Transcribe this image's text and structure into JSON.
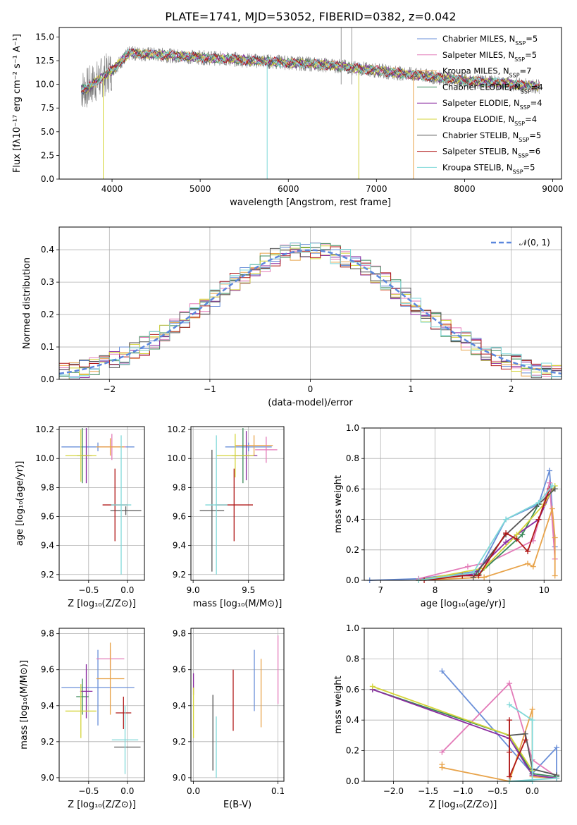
{
  "figure": {
    "title": "PLATE=1741, MJD=53052, FIBERID=0382, z=0.042"
  },
  "chart_data": [
    {
      "id": "spectrum",
      "type": "line",
      "xlabel": "wavelength [Angstrom, rest frame]",
      "ylabel": "Flux [fλ10⁻¹⁷ erg cm⁻² s⁻¹ A⁻¹]",
      "xlim": [
        3400,
        9100
      ],
      "ylim": [
        0,
        16
      ],
      "xticks": [
        "4000",
        "5000",
        "6000",
        "7000",
        "8000",
        "9000"
      ],
      "yticks": [
        "0.0",
        "2.5",
        "5.0",
        "7.5",
        "10.0",
        "12.5",
        "15.0"
      ],
      "grid": false,
      "legend_position": "upper right",
      "data_wavelength_range": [
        3650,
        8850
      ],
      "legend": [
        {
          "name": "Chabrier MILES, N",
          "sub": "SSP",
          "tail": "=5",
          "color": "#6a8fd8"
        },
        {
          "name": "Salpeter MILES, N",
          "sub": "SSP",
          "tail": "=5",
          "color": "#e37ab8"
        },
        {
          "name": "Kroupa MILES, N",
          "sub": "SSP",
          "tail": "=7",
          "color": "#e8a34a"
        },
        {
          "name": "Chabrier ELODIE, N",
          "sub": "SSP",
          "tail": "=4",
          "color": "#3a8a5a"
        },
        {
          "name": "Salpeter ELODIE, N",
          "sub": "SSP",
          "tail": "=4",
          "color": "#8a2ba0"
        },
        {
          "name": "Kroupa ELODIE, N",
          "sub": "SSP",
          "tail": "=4",
          "color": "#d4d438"
        },
        {
          "name": "Chabrier STELIB, N",
          "sub": "SSP",
          "tail": "=5",
          "color": "#555555"
        },
        {
          "name": "Salpeter STELIB, N",
          "sub": "SSP",
          "tail": "=6",
          "color": "#b01818"
        },
        {
          "name": "Kroupa STELIB, N",
          "sub": "SSP",
          "tail": "=5",
          "color": "#7fd8d8"
        }
      ]
    },
    {
      "id": "residual-histogram",
      "type": "histogram",
      "xlabel": "(data-model)/error",
      "ylabel": "Normed distribution",
      "xlim": [
        -2.5,
        2.5
      ],
      "ylim": [
        0,
        0.47
      ],
      "xticks": [
        "−2",
        "−1",
        "0",
        "1",
        "2"
      ],
      "yticks": [
        "0.0",
        "0.1",
        "0.2",
        "0.3",
        "0.4"
      ],
      "grid": true,
      "legend_label": "𝒩(0, 1)",
      "reference_curve": {
        "name": "N(0,1)",
        "mean": 0,
        "sigma": 1,
        "color": "#5b87dd"
      },
      "bin_width": 0.1,
      "bin_start": -2.5
    },
    {
      "id": "age-vs-z",
      "type": "errorbar",
      "xlabel": "Z [log₁₀(Z/Z⊙)]",
      "ylabel": "age  [log₁₀(age/yr)]",
      "xlim": [
        -0.88,
        0.22
      ],
      "ylim": [
        9.16,
        10.22
      ],
      "xticks": [
        "−0.5",
        "0.0"
      ],
      "yticks": [
        "9.2",
        "9.4",
        "9.6",
        "9.8",
        "10.0",
        "10.2"
      ],
      "grid": true,
      "points": [
        {
          "x": -0.38,
          "xerr": 0.47,
          "y": 10.08,
          "yerr": 0.03,
          "color": "#6a8fd8"
        },
        {
          "x": -0.2,
          "xerr": 0.18,
          "y": 10.08,
          "yerr": 0.09,
          "color": "#e37ab8"
        },
        {
          "x": -0.22,
          "xerr": 0.18,
          "y": 10.08,
          "yerr": 0.06,
          "color": "#e8a34a"
        },
        {
          "x": -0.58,
          "xerr": 0.07,
          "y": 10.02,
          "yerr": 0.19,
          "color": "#3a8a5a"
        },
        {
          "x": -0.53,
          "xerr": 0.07,
          "y": 10.02,
          "yerr": 0.19,
          "color": "#8a2ba0"
        },
        {
          "x": -0.6,
          "xerr": 0.2,
          "y": 10.02,
          "yerr": 0.18,
          "color": "#d4d438"
        },
        {
          "x": -0.02,
          "xerr": 0.2,
          "y": 9.64,
          "yerr": 0.03,
          "color": "#555555"
        },
        {
          "x": -0.16,
          "xerr": 0.16,
          "y": 9.68,
          "yerr": 0.25,
          "color": "#b01818"
        },
        {
          "x": -0.08,
          "xerr": 0.13,
          "y": 9.68,
          "yerr": 0.48,
          "color": "#7fd8d8"
        }
      ]
    },
    {
      "id": "age-vs-mass",
      "type": "errorbar",
      "xlabel": "mass [log₁₀(M/M⊙)]",
      "ylabel": "",
      "xlim": [
        8.98,
        9.82
      ],
      "ylim": [
        9.16,
        10.22
      ],
      "xticks": [
        "9.0",
        "9.5"
      ],
      "yticks": [
        "9.2",
        "9.4",
        "9.6",
        "9.8",
        "10.0",
        "10.2"
      ],
      "grid": true,
      "points": [
        {
          "x": 9.5,
          "xerr": 0.21,
          "y": 10.08,
          "yerr": 0.03,
          "color": "#6a8fd8"
        },
        {
          "x": 9.66,
          "xerr": 0.1,
          "y": 10.06,
          "yerr": 0.09,
          "color": "#e37ab8"
        },
        {
          "x": 9.55,
          "xerr": 0.17,
          "y": 10.09,
          "yerr": 0.07,
          "color": "#e8a34a"
        },
        {
          "x": 9.45,
          "xerr": 0.1,
          "y": 10.02,
          "yerr": 0.19,
          "color": "#3a8a5a"
        },
        {
          "x": 9.48,
          "xerr": 0.1,
          "y": 10.02,
          "yerr": 0.17,
          "color": "#8a2ba0"
        },
        {
          "x": 9.38,
          "xerr": 0.17,
          "y": 10.02,
          "yerr": 0.15,
          "color": "#d4d438"
        },
        {
          "x": 9.17,
          "xerr": 0.11,
          "y": 9.64,
          "yerr": 0.42,
          "color": "#555555"
        },
        {
          "x": 9.37,
          "xerr": 0.17,
          "y": 9.68,
          "yerr": 0.25,
          "color": "#b01818"
        },
        {
          "x": 9.21,
          "xerr": 0.1,
          "y": 9.68,
          "yerr": 0.48,
          "color": "#7fd8d8"
        }
      ]
    },
    {
      "id": "mass-weight-vs-age",
      "type": "line",
      "xlabel": "age  [log₁₀(age/yr)]",
      "ylabel": "mass weight",
      "xlim": [
        6.7,
        10.32
      ],
      "ylim": [
        0,
        1
      ],
      "xticks": [
        "7",
        "8",
        "9",
        "10"
      ],
      "yticks": [
        "0.0",
        "0.2",
        "0.4",
        "0.6",
        "0.8",
        "1.0"
      ],
      "grid": true,
      "series": [
        {
          "color": "#6a8fd8",
          "points": [
            [
              6.8,
              0.0
            ],
            [
              7.7,
              0.01
            ],
            [
              8.8,
              0.06
            ],
            [
              9.3,
              0.4
            ],
            [
              9.9,
              0.5
            ],
            [
              10.1,
              0.72
            ],
            [
              10.2,
              0.22
            ]
          ]
        },
        {
          "color": "#e37ab8",
          "points": [
            [
              7.7,
              0.01
            ],
            [
              8.6,
              0.09
            ],
            [
              9.0,
              0.12
            ],
            [
              9.8,
              0.26
            ],
            [
              10.1,
              0.64
            ],
            [
              10.2,
              0.14
            ]
          ]
        },
        {
          "color": "#e8a34a",
          "points": [
            [
              7.7,
              0.0
            ],
            [
              8.9,
              0.02
            ],
            [
              9.7,
              0.11
            ],
            [
              9.8,
              0.09
            ],
            [
              10.15,
              0.47
            ],
            [
              10.2,
              0.28
            ],
            [
              10.2,
              0.03
            ]
          ]
        },
        {
          "color": "#3a8a5a",
          "points": [
            [
              7.7,
              0.0
            ],
            [
              8.5,
              0.03
            ],
            [
              8.8,
              0.04
            ],
            [
              9.6,
              0.3
            ],
            [
              9.9,
              0.5
            ],
            [
              10.2,
              0.6
            ]
          ]
        },
        {
          "color": "#8a2ba0",
          "points": [
            [
              7.7,
              0.0
            ],
            [
              8.7,
              0.04
            ],
            [
              9.3,
              0.25
            ],
            [
              9.9,
              0.4
            ],
            [
              10.15,
              0.6
            ]
          ]
        },
        {
          "color": "#d4d438",
          "points": [
            [
              7.7,
              0.0
            ],
            [
              8.9,
              0.08
            ],
            [
              9.5,
              0.3
            ],
            [
              10.0,
              0.5
            ],
            [
              10.2,
              0.62
            ]
          ]
        },
        {
          "color": "#555555",
          "points": [
            [
              8.7,
              0.02
            ],
            [
              9.3,
              0.3
            ],
            [
              9.9,
              0.5
            ],
            [
              10.2,
              0.6
            ]
          ]
        },
        {
          "color": "#b01818",
          "points": [
            [
              7.8,
              0.0
            ],
            [
              8.5,
              0.03
            ],
            [
              8.8,
              0.03
            ],
            [
              9.3,
              0.31
            ],
            [
              9.5,
              0.27
            ],
            [
              9.7,
              0.19
            ],
            [
              9.9,
              0.4
            ],
            [
              10.1,
              0.6
            ]
          ]
        },
        {
          "color": "#7fd8d8",
          "points": [
            [
              7.7,
              0.0
            ],
            [
              8.7,
              0.05
            ],
            [
              9.3,
              0.4
            ],
            [
              9.9,
              0.51
            ],
            [
              10.15,
              0.62
            ]
          ]
        }
      ]
    },
    {
      "id": "mass-vs-z",
      "type": "errorbar",
      "xlabel": "Z [log₁₀(Z/Z⊙)]",
      "ylabel": "mass [log₁₀(M/M⊙)]",
      "xlim": [
        -0.88,
        0.22
      ],
      "ylim": [
        8.98,
        9.83
      ],
      "xticks": [
        "−0.5",
        "0.0"
      ],
      "yticks": [
        "9.0",
        "9.2",
        "9.4",
        "9.6",
        "9.8"
      ],
      "grid": true,
      "points": [
        {
          "x": -0.38,
          "xerr": 0.47,
          "y": 9.5,
          "yerr": 0.21,
          "color": "#6a8fd8"
        },
        {
          "x": -0.22,
          "xerr": 0.18,
          "y": 9.66,
          "yerr": 0.05,
          "color": "#e37ab8"
        },
        {
          "x": -0.22,
          "xerr": 0.18,
          "y": 9.55,
          "yerr": 0.2,
          "color": "#e8a34a"
        },
        {
          "x": -0.58,
          "xerr": 0.08,
          "y": 9.45,
          "yerr": 0.1,
          "color": "#3a8a5a"
        },
        {
          "x": -0.53,
          "xerr": 0.08,
          "y": 9.48,
          "yerr": 0.15,
          "color": "#8a2ba0"
        },
        {
          "x": -0.6,
          "xerr": 0.2,
          "y": 9.37,
          "yerr": 0.15,
          "color": "#d4d438"
        },
        {
          "x": 0.0,
          "xerr": 0.17,
          "y": 9.17,
          "yerr": 0.0,
          "color": "#555555"
        },
        {
          "x": -0.05,
          "xerr": 0.1,
          "y": 9.36,
          "yerr": 0.09,
          "color": "#b01818"
        },
        {
          "x": -0.03,
          "xerr": 0.17,
          "y": 9.21,
          "yerr": 0.19,
          "color": "#7fd8d8"
        }
      ]
    },
    {
      "id": "mass-vs-ebv",
      "type": "errorbar",
      "xlabel": "E(B-V)",
      "ylabel": "",
      "xlim": [
        -0.003,
        0.107
      ],
      "ylim": [
        8.98,
        9.83
      ],
      "xticks": [
        "0.0",
        "0.1"
      ],
      "yticks": [
        "9.0",
        "9.2",
        "9.4",
        "9.6",
        "9.8"
      ],
      "grid": true,
      "points": [
        {
          "x": 0.072,
          "xerr": 0,
          "y": 9.54,
          "yerr": 0.17,
          "color": "#6a8fd8"
        },
        {
          "x": 0.1,
          "xerr": 0,
          "y": 9.6,
          "yerr": 0.19,
          "color": "#e37ab8"
        },
        {
          "x": 0.08,
          "xerr": 0,
          "y": 9.47,
          "yerr": 0.19,
          "color": "#e8a34a"
        },
        {
          "x": 0.0,
          "xerr": 0,
          "y": 9.52,
          "yerr": 0.06,
          "color": "#8a2ba0"
        },
        {
          "x": 0.0,
          "xerr": 0,
          "y": 9.36,
          "yerr": 0.14,
          "color": "#d4d438"
        },
        {
          "x": 0.023,
          "xerr": 0,
          "y": 9.25,
          "yerr": 0.21,
          "color": "#555555"
        },
        {
          "x": 0.047,
          "xerr": 0,
          "y": 9.43,
          "yerr": 0.17,
          "color": "#b01818"
        },
        {
          "x": 0.027,
          "xerr": 0,
          "y": 9.17,
          "yerr": 0.17,
          "color": "#7fd8d8"
        }
      ]
    },
    {
      "id": "mass-weight-vs-z",
      "type": "line",
      "xlabel": "Z [log₁₀(Z/Z⊙)]",
      "ylabel": "mass weight",
      "xlim": [
        -2.42,
        0.42
      ],
      "ylim": [
        0,
        1
      ],
      "xticks": [
        "−2.0",
        "−1.5",
        "−1.0",
        "−0.5",
        "0.0"
      ],
      "yticks": [
        "0.0",
        "0.2",
        "0.4",
        "0.6",
        "0.8",
        "1.0"
      ],
      "grid": true,
      "series": [
        {
          "color": "#6a8fd8",
          "points": [
            [
              -1.3,
              0.72
            ],
            [
              0.0,
              0.05
            ],
            [
              0.35,
              0.22
            ],
            [
              0.35,
              0.02
            ]
          ]
        },
        {
          "color": "#e37ab8",
          "points": [
            [
              -1.3,
              0.19
            ],
            [
              -0.33,
              0.64
            ],
            [
              0.0,
              0.14
            ],
            [
              0.35,
              0.03
            ]
          ]
        },
        {
          "color": "#e8a34a",
          "points": [
            [
              -1.3,
              0.11
            ],
            [
              -1.3,
              0.09
            ],
            [
              -0.33,
              0.0
            ],
            [
              0.0,
              0.47
            ],
            [
              0.0,
              0.03
            ],
            [
              0.35,
              0.02
            ]
          ]
        },
        {
          "color": "#3a8a5a",
          "points": [
            [
              -2.3,
              0.6
            ],
            [
              -0.33,
              0.3
            ],
            [
              0.0,
              0.05
            ],
            [
              0.35,
              0.03
            ]
          ]
        },
        {
          "color": "#8a2ba0",
          "points": [
            [
              -2.3,
              0.6
            ],
            [
              -0.33,
              0.28
            ],
            [
              0.0,
              0.04
            ],
            [
              0.35,
              0.02
            ]
          ]
        },
        {
          "color": "#d4d438",
          "points": [
            [
              -2.3,
              0.62
            ],
            [
              -0.33,
              0.3
            ],
            [
              0.0,
              0.07
            ]
          ]
        },
        {
          "color": "#555555",
          "points": [
            [
              -0.33,
              0.3
            ],
            [
              -0.1,
              0.31
            ],
            [
              0.0,
              0.08
            ],
            [
              0.35,
              0.04
            ]
          ]
        },
        {
          "color": "#b01818",
          "points": [
            [
              -0.33,
              0.4
            ],
            [
              -0.33,
              0.19
            ],
            [
              -0.33,
              0.03
            ],
            [
              -0.1,
              0.27
            ]
          ]
        },
        {
          "color": "#7fd8d8",
          "points": [
            [
              -0.33,
              0.5
            ],
            [
              0.0,
              0.4
            ],
            [
              0.0,
              0.0
            ],
            [
              -0.33,
              0.0
            ],
            [
              0.35,
              0.02
            ]
          ]
        }
      ]
    }
  ]
}
